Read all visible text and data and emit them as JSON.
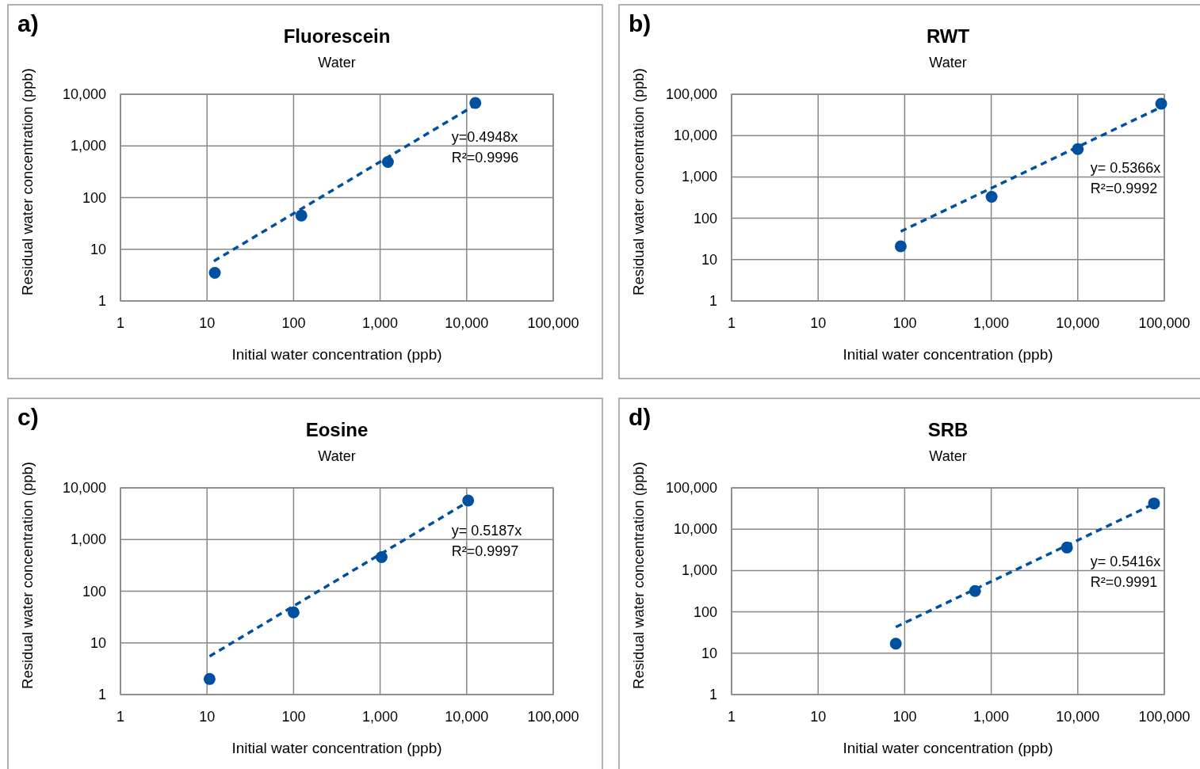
{
  "chart_data": [
    {
      "type": "scatter",
      "title": "Fluorescein",
      "subtitle": "Water",
      "xlabel": "Initial water concentration (ppb)",
      "ylabel": "Residual water concentration (ppb)",
      "annotations": [
        "a)",
        "y=0.4948x",
        "R²=0.9996"
      ],
      "log": "xy",
      "grid": true,
      "marker": "circle",
      "xlim": [
        1,
        100000
      ],
      "ylim": [
        1,
        10000
      ],
      "xticks": [
        1,
        10,
        100,
        {
          "value": 1000,
          "label": "1,000"
        },
        {
          "value": 10000,
          "label": "10,000"
        },
        {
          "value": 100000,
          "label": "100,000"
        }
      ],
      "yticks": [
        1,
        10,
        100,
        {
          "value": 1000,
          "label": "1,000"
        },
        {
          "value": 10000,
          "label": "10,000"
        }
      ],
      "series": [
        {
          "color": "#0050a0",
          "x": [
            12.3,
            123,
            1230,
            12600
          ],
          "values": [
            3.5,
            45,
            490,
            6800
          ]
        },
        {
          "type": "line",
          "color": "#0050a0",
          "line_style": "dashed",
          "marker": "none",
          "x": [
            12,
            12600
          ],
          "values": [
            5.9,
            6200
          ]
        }
      ]
    },
    {
      "type": "scatter",
      "title": "RWT",
      "subtitle": "Water",
      "xlabel": "Initial water concentration (ppb)",
      "ylabel": "Residual water concentration (ppb)",
      "annotations": [
        "b)",
        "y= 0.5366x",
        "R²=0.9992"
      ],
      "log": "xy",
      "grid": true,
      "marker": "circle",
      "xlim": [
        1,
        100000
      ],
      "ylim": [
        1,
        100000
      ],
      "xticks": [
        1,
        10,
        100,
        {
          "value": 1000,
          "label": "1,000"
        },
        {
          "value": 10000,
          "label": "10,000"
        },
        {
          "value": 100000,
          "label": "100,000"
        }
      ],
      "yticks": [
        1,
        10,
        100,
        {
          "value": 1000,
          "label": "1,000"
        },
        {
          "value": 10000,
          "label": "10,000"
        },
        {
          "value": 100000,
          "label": "100,000"
        }
      ],
      "series": [
        {
          "color": "#0050a0",
          "x": [
            90,
            1010,
            10000,
            92000
          ],
          "values": [
            21,
            330,
            4700,
            59000
          ]
        },
        {
          "type": "line",
          "color": "#0050a0",
          "line_style": "dashed",
          "marker": "none",
          "x": [
            90,
            92000
          ],
          "values": [
            48,
            49000
          ]
        }
      ]
    },
    {
      "type": "scatter",
      "title": "Eosine",
      "subtitle": "Water",
      "xlabel": "Initial water concentration (ppb)",
      "ylabel": "Residual water concentration (ppb)",
      "annotations": [
        "c)",
        "y= 0.5187x",
        "R²=0.9997"
      ],
      "log": "xy",
      "grid": true,
      "marker": "circle",
      "xlim": [
        1,
        100000
      ],
      "ylim": [
        1,
        10000
      ],
      "xticks": [
        1,
        10,
        100,
        {
          "value": 1000,
          "label": "1,000"
        },
        {
          "value": 10000,
          "label": "10,000"
        },
        {
          "value": 100000,
          "label": "100,000"
        }
      ],
      "yticks": [
        1,
        10,
        100,
        {
          "value": 1000,
          "label": "1,000"
        },
        {
          "value": 10000,
          "label": "10,000"
        }
      ],
      "series": [
        {
          "color": "#0050a0",
          "x": [
            10.7,
            100,
            1040,
            10400
          ],
          "values": [
            2.0,
            39,
            455,
            5700
          ]
        },
        {
          "type": "line",
          "color": "#0050a0",
          "line_style": "dashed",
          "marker": "none",
          "x": [
            10.7,
            10400
          ],
          "values": [
            5.5,
            5400
          ]
        }
      ]
    },
    {
      "type": "scatter",
      "title": "SRB",
      "subtitle": "Water",
      "xlabel": "Initial water concentration (ppb)",
      "ylabel": "Residual water concentration (ppb)",
      "annotations": [
        "d)",
        "y= 0.5416x",
        "R²=0.9991"
      ],
      "log": "xy",
      "grid": true,
      "marker": "circle",
      "xlim": [
        1,
        100000
      ],
      "ylim": [
        1,
        100000
      ],
      "xticks": [
        1,
        10,
        100,
        {
          "value": 1000,
          "label": "1,000"
        },
        {
          "value": 10000,
          "label": "10,000"
        },
        {
          "value": 100000,
          "label": "100,000"
        }
      ],
      "yticks": [
        1,
        10,
        100,
        {
          "value": 1000,
          "label": "1,000"
        },
        {
          "value": 10000,
          "label": "10,000"
        },
        {
          "value": 100000,
          "label": "100,000"
        }
      ],
      "series": [
        {
          "color": "#0050a0",
          "x": [
            79,
            650,
            7500,
            76000
          ],
          "values": [
            17,
            320,
            3600,
            42000
          ]
        },
        {
          "type": "line",
          "color": "#0050a0",
          "line_style": "dashed",
          "marker": "none",
          "x": [
            79,
            76000
          ],
          "values": [
            43,
            41000
          ]
        }
      ]
    }
  ]
}
